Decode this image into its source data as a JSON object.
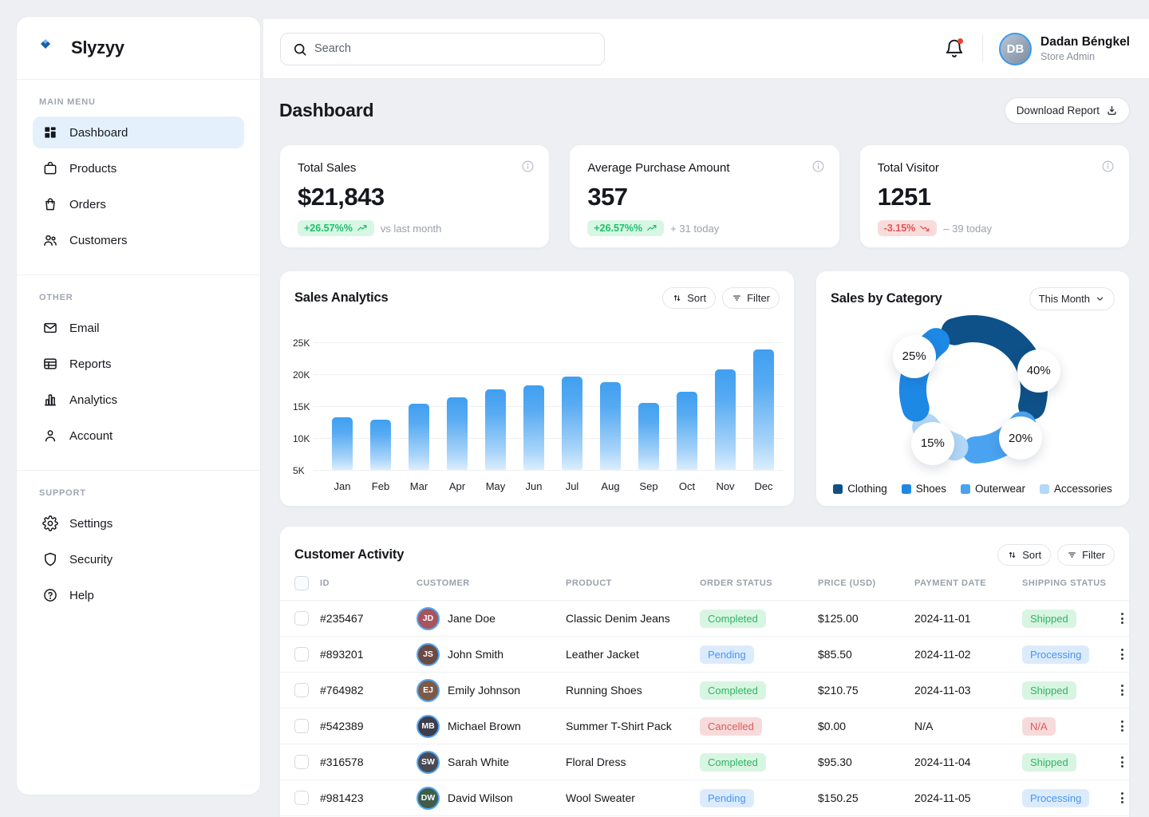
{
  "brand": {
    "name": "Slyzyy"
  },
  "topbar": {
    "search_placeholder": "Search",
    "user_name": "Dadan Béngkel",
    "user_role": "Store Admin",
    "user_initials": "DB",
    "has_notification": true
  },
  "page": {
    "title": "Dashboard",
    "download_label": "Download Report"
  },
  "sidebar": {
    "sections": [
      {
        "label": "MAIN MENU",
        "items": [
          {
            "label": "Dashboard",
            "icon": "dashboard-icon",
            "active": true
          },
          {
            "label": "Products",
            "icon": "products-icon",
            "active": false
          },
          {
            "label": "Orders",
            "icon": "orders-icon",
            "active": false
          },
          {
            "label": "Customers",
            "icon": "customers-icon",
            "active": false
          }
        ]
      },
      {
        "label": "OTHER",
        "items": [
          {
            "label": "Email",
            "icon": "email-icon",
            "active": false
          },
          {
            "label": "Reports",
            "icon": "reports-icon",
            "active": false
          },
          {
            "label": "Analytics",
            "icon": "analytics-icon",
            "active": false
          },
          {
            "label": "Account",
            "icon": "account-icon",
            "active": false
          }
        ]
      },
      {
        "label": "SUPPORT",
        "items": [
          {
            "label": "Settings",
            "icon": "settings-icon",
            "active": false
          },
          {
            "label": "Security",
            "icon": "security-icon",
            "active": false
          },
          {
            "label": "Help",
            "icon": "help-icon",
            "active": false
          }
        ]
      }
    ]
  },
  "stat_cards": [
    {
      "title": "Total Sales",
      "value": "$21,843",
      "badge": "+26.57%%",
      "trend": "up",
      "subtext": "vs last month"
    },
    {
      "title": "Average Purchase Amount",
      "value": "357",
      "badge": "+26.57%%",
      "trend": "up",
      "subtext": "+ 31 today"
    },
    {
      "title": "Total Visitor",
      "value": "1251",
      "badge": "-3.15%",
      "trend": "down",
      "subtext": "– 39 today"
    }
  ],
  "sales_analytics": {
    "title": "Sales Analytics",
    "sort_label": "Sort",
    "filter_label": "Filter"
  },
  "sales_by_category": {
    "title": "Sales by Category",
    "period": "This Month"
  },
  "chart_data": [
    {
      "type": "bar",
      "title": "Sales Analytics",
      "categories": [
        "Jan",
        "Feb",
        "Mar",
        "Apr",
        "May",
        "Jun",
        "Jul",
        "Aug",
        "Sep",
        "Oct",
        "Nov",
        "Dec"
      ],
      "values": [
        13300,
        12900,
        15400,
        16400,
        17600,
        18200,
        19600,
        18700,
        15500,
        17200,
        20700,
        23900
      ],
      "xlabel": "",
      "ylabel": "",
      "ylim": [
        5000,
        25000
      ],
      "yticks": [
        "5K",
        "10K",
        "15K",
        "20K",
        "25K"
      ],
      "grid": true,
      "bar_color_top": "#3f9ff0",
      "bar_color_bottom": "#dbeefd"
    },
    {
      "type": "pie",
      "donut": true,
      "title": "Sales by Category",
      "period": "This Month",
      "slices": [
        {
          "label": "Clothing",
          "pct": 40,
          "pct_label": "40%",
          "color": "#0e5189"
        },
        {
          "label": "Outerwear",
          "pct": 20,
          "pct_label": "20%",
          "color": "#4aa3f0"
        },
        {
          "label": "Accessories",
          "pct": 15,
          "pct_label": "15%",
          "color": "#b3d8f8"
        },
        {
          "label": "Shoes",
          "pct": 25,
          "pct_label": "25%",
          "color": "#1e88e5"
        }
      ],
      "legend": [
        {
          "label": "Clothing",
          "color": "#0e5189"
        },
        {
          "label": "Shoes",
          "color": "#1e88e5"
        },
        {
          "label": "Outerwear",
          "color": "#4aa3f0"
        },
        {
          "label": "Accessories",
          "color": "#b3d8f8"
        }
      ],
      "legend_position": "bottom"
    }
  ],
  "customer_activity": {
    "title": "Customer Activity",
    "sort_label": "Sort",
    "filter_label": "Filter",
    "columns": [
      "ID",
      "CUSTOMER",
      "PRODUCT",
      "ORDER STATUS",
      "PRICE (USD)",
      "PAYMENT DATE",
      "SHIPPING STATUS"
    ],
    "rows": [
      {
        "id": "#235467",
        "customer": "Jane Doe",
        "initials": "JD",
        "avatar_color": "#a8545e",
        "product": "Classic Denim Jeans",
        "order_status": "Completed",
        "order_status_type": "success",
        "price": "$125.00",
        "payment_date": "2024-11-01",
        "shipping_status": "Shipped",
        "shipping_status_type": "success"
      },
      {
        "id": "#893201",
        "customer": "John Smith",
        "initials": "JS",
        "avatar_color": "#6b4a43",
        "product": "Leather Jacket",
        "order_status": "Pending",
        "order_status_type": "info",
        "price": "$85.50",
        "payment_date": "2024-11-02",
        "shipping_status": "Processing",
        "shipping_status_type": "info"
      },
      {
        "id": "#764982",
        "customer": "Emily Johnson",
        "initials": "EJ",
        "avatar_color": "#7d5a48",
        "product": "Running Shoes",
        "order_status": "Completed",
        "order_status_type": "success",
        "price": "$210.75",
        "payment_date": "2024-11-03",
        "shipping_status": "Shipped",
        "shipping_status_type": "success"
      },
      {
        "id": "#542389",
        "customer": "Michael Brown",
        "initials": "MB",
        "avatar_color": "#3d3d4d",
        "product": "Summer T-Shirt Pack",
        "order_status": "Cancelled",
        "order_status_type": "danger",
        "price": "$0.00",
        "payment_date": "N/A",
        "shipping_status": "N/A",
        "shipping_status_type": "danger"
      },
      {
        "id": "#316578",
        "customer": "Sarah White",
        "initials": "SW",
        "avatar_color": "#4a4a55",
        "product": "Floral Dress",
        "order_status": "Completed",
        "order_status_type": "success",
        "price": "$95.30",
        "payment_date": "2024-11-04",
        "shipping_status": "Shipped",
        "shipping_status_type": "success"
      },
      {
        "id": "#981423",
        "customer": "David Wilson",
        "initials": "DW",
        "avatar_color": "#3e5e4a",
        "product": "Wool Sweater",
        "order_status": "Pending",
        "order_status_type": "info",
        "price": "$150.25",
        "payment_date": "2024-11-05",
        "shipping_status": "Processing",
        "shipping_status_type": "info"
      }
    ]
  }
}
